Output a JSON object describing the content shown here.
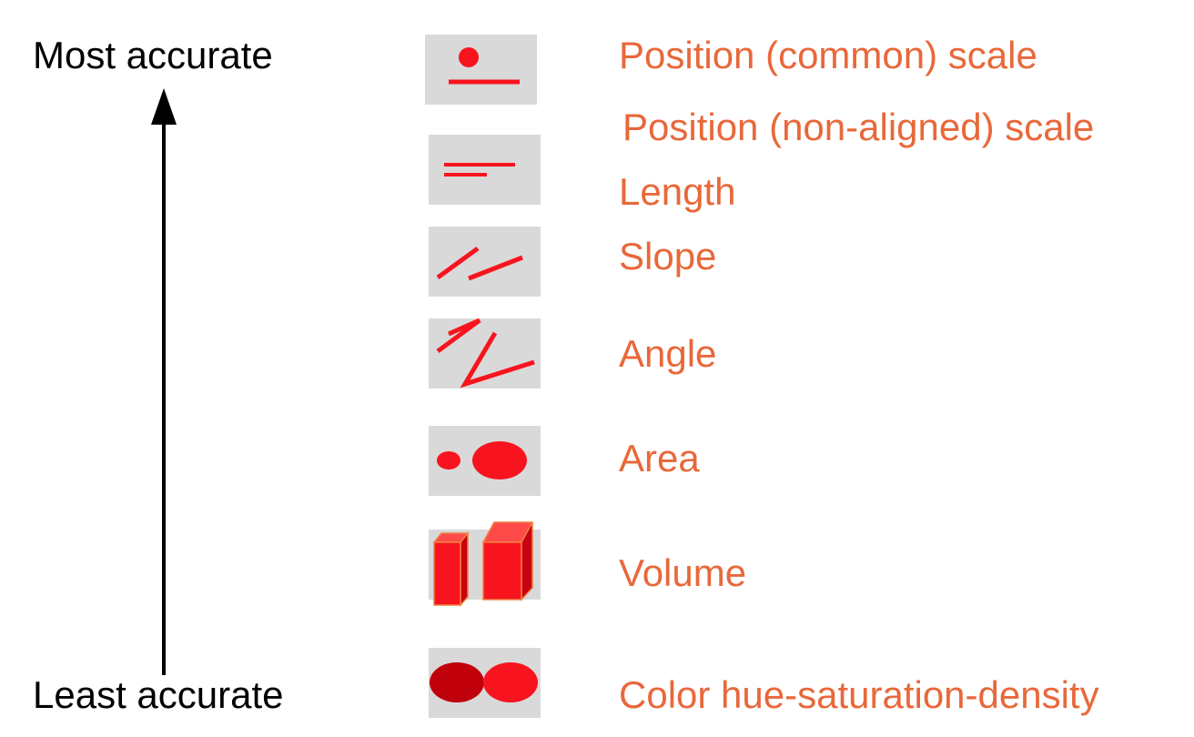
{
  "scale": {
    "top_label": "Most accurate",
    "bottom_label": "Least accurate"
  },
  "colors": {
    "label": "#e8683a",
    "mark": "#f8141e",
    "mark_dark": "#c0000b",
    "box": "#d9d9d9",
    "arrow": "#000000"
  },
  "channels": [
    {
      "label": "Position (common) scale",
      "icon": "position-common-icon"
    },
    {
      "label": "Position (non-aligned) scale",
      "icon": "position-nonaligned-icon"
    },
    {
      "label": "Length",
      "icon": "length-icon"
    },
    {
      "label": "Slope",
      "icon": "slope-icon"
    },
    {
      "label": "Angle",
      "icon": "angle-icon"
    },
    {
      "label": "Area",
      "icon": "area-icon"
    },
    {
      "label": "Volume",
      "icon": "volume-icon"
    },
    {
      "label": "Color hue-saturation-density",
      "icon": "color-icon"
    }
  ]
}
